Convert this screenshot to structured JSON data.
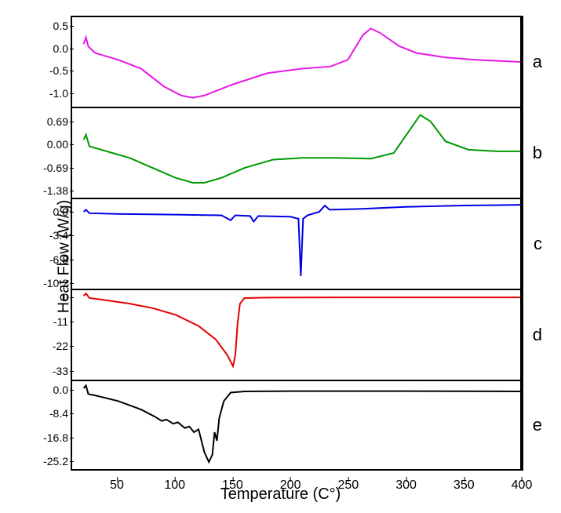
{
  "chart": {
    "ylabel": "Heat Flow (W/g)",
    "xlabel": "Temperature (C°)",
    "x_range": [
      10,
      400
    ],
    "x_ticks": [
      50,
      100,
      150,
      200,
      250,
      300,
      350,
      400
    ],
    "background_color": "#ffffff",
    "axis_color": "#000000",
    "label_fontsize": 20,
    "tick_fontsize": 14,
    "panels": [
      {
        "id": "a",
        "color": "#e619e6",
        "line_width": 2,
        "y_ticks": [
          0.5,
          0.0,
          -0.5,
          -1.0
        ],
        "y_range": [
          -1.3,
          0.7
        ],
        "data": [
          [
            20,
            0.1
          ],
          [
            22,
            0.25
          ],
          [
            24,
            0.05
          ],
          [
            30,
            -0.1
          ],
          [
            50,
            -0.25
          ],
          [
            70,
            -0.45
          ],
          [
            90,
            -0.85
          ],
          [
            105,
            -1.05
          ],
          [
            115,
            -1.1
          ],
          [
            125,
            -1.05
          ],
          [
            150,
            -0.8
          ],
          [
            180,
            -0.55
          ],
          [
            210,
            -0.45
          ],
          [
            235,
            -0.4
          ],
          [
            250,
            -0.25
          ],
          [
            263,
            0.3
          ],
          [
            270,
            0.45
          ],
          [
            278,
            0.35
          ],
          [
            295,
            0.05
          ],
          [
            310,
            -0.1
          ],
          [
            335,
            -0.2
          ],
          [
            360,
            -0.25
          ],
          [
            400,
            -0.3
          ]
        ]
      },
      {
        "id": "b",
        "color": "#009900",
        "line_width": 2,
        "y_ticks": [
          0.69,
          0.0,
          -0.69,
          -1.38
        ],
        "y_range": [
          -1.6,
          1.1
        ],
        "data": [
          [
            20,
            0.15
          ],
          [
            22,
            0.3
          ],
          [
            25,
            -0.05
          ],
          [
            40,
            -0.2
          ],
          [
            60,
            -0.4
          ],
          [
            80,
            -0.7
          ],
          [
            100,
            -1.0
          ],
          [
            115,
            -1.15
          ],
          [
            125,
            -1.15
          ],
          [
            140,
            -1.0
          ],
          [
            160,
            -0.7
          ],
          [
            185,
            -0.45
          ],
          [
            210,
            -0.4
          ],
          [
            240,
            -0.4
          ],
          [
            270,
            -0.42
          ],
          [
            290,
            -0.25
          ],
          [
            303,
            0.4
          ],
          [
            313,
            0.9
          ],
          [
            322,
            0.7
          ],
          [
            335,
            0.1
          ],
          [
            355,
            -0.15
          ],
          [
            380,
            -0.2
          ],
          [
            400,
            -0.2
          ]
        ]
      },
      {
        "id": "c",
        "color": "#0000e6",
        "line_width": 2,
        "y_ticks": [
          0.0,
          -3.4,
          -6.8,
          -10.2
        ],
        "y_range": [
          -11,
          1.8
        ],
        "data": [
          [
            20,
            0.0
          ],
          [
            22,
            0.3
          ],
          [
            25,
            -0.2
          ],
          [
            50,
            -0.3
          ],
          [
            100,
            -0.4
          ],
          [
            140,
            -0.5
          ],
          [
            148,
            -1.2
          ],
          [
            152,
            -0.5
          ],
          [
            165,
            -0.6
          ],
          [
            168,
            -1.4
          ],
          [
            172,
            -0.6
          ],
          [
            200,
            -0.7
          ],
          [
            207,
            -1.0
          ],
          [
            209,
            -9.2
          ],
          [
            211,
            -1.0
          ],
          [
            215,
            -0.5
          ],
          [
            225,
            0.0
          ],
          [
            230,
            0.9
          ],
          [
            234,
            0.3
          ],
          [
            260,
            0.4
          ],
          [
            300,
            0.7
          ],
          [
            350,
            0.9
          ],
          [
            400,
            1.0
          ]
        ]
      },
      {
        "id": "d",
        "color": "#e60000",
        "line_width": 2,
        "y_ticks": [
          0,
          -11,
          -22,
          -33
        ],
        "y_range": [
          -37,
          3
        ],
        "data": [
          [
            20,
            0.5
          ],
          [
            22,
            1.5
          ],
          [
            25,
            -0.5
          ],
          [
            40,
            -1.5
          ],
          [
            60,
            -3.0
          ],
          [
            80,
            -5.0
          ],
          [
            100,
            -8.0
          ],
          [
            120,
            -13.0
          ],
          [
            135,
            -19.0
          ],
          [
            145,
            -26.0
          ],
          [
            150,
            -31.0
          ],
          [
            152,
            -26.0
          ],
          [
            154,
            -12.0
          ],
          [
            156,
            -3.0
          ],
          [
            160,
            -0.5
          ],
          [
            180,
            -0.3
          ],
          [
            250,
            -0.2
          ],
          [
            400,
            -0.2
          ]
        ]
      },
      {
        "id": "e",
        "color": "#000000",
        "line_width": 2,
        "y_ticks": [
          0.0,
          -8.4,
          -16.8,
          -25.2
        ],
        "y_range": [
          -28,
          3
        ],
        "data": [
          [
            20,
            0.5
          ],
          [
            22,
            1.5
          ],
          [
            24,
            -1.5
          ],
          [
            30,
            -2.0
          ],
          [
            50,
            -4.0
          ],
          [
            70,
            -7.0
          ],
          [
            82,
            -9.5
          ],
          [
            88,
            -11.0
          ],
          [
            92,
            -10.5
          ],
          [
            98,
            -12.0
          ],
          [
            102,
            -11.5
          ],
          [
            108,
            -13.5
          ],
          [
            112,
            -13.0
          ],
          [
            116,
            -15.0
          ],
          [
            120,
            -14.0
          ],
          [
            125,
            -22.0
          ],
          [
            129,
            -25.5
          ],
          [
            132,
            -23.0
          ],
          [
            134,
            -15.0
          ],
          [
            136,
            -18.0
          ],
          [
            138,
            -10.0
          ],
          [
            142,
            -4.0
          ],
          [
            148,
            -1.0
          ],
          [
            160,
            -0.6
          ],
          [
            200,
            -0.5
          ],
          [
            300,
            -0.5
          ],
          [
            400,
            -0.6
          ]
        ]
      }
    ]
  }
}
